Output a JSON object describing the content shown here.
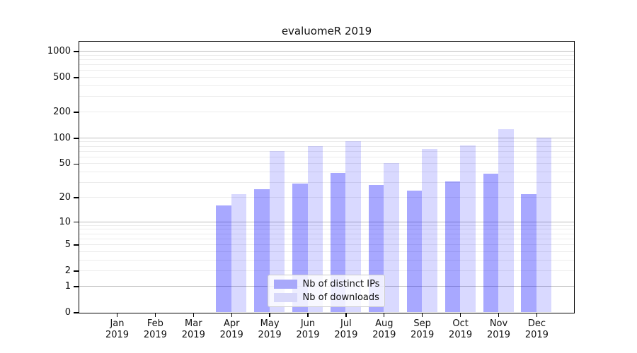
{
  "figure": {
    "title": "evaluomeR 2019",
    "background": "#ffffff"
  },
  "chart_data": {
    "type": "bar",
    "title": "evaluomeR 2019",
    "categories": [
      "Jan",
      "Feb",
      "Mar",
      "Apr",
      "May",
      "Jun",
      "Jul",
      "Aug",
      "Sep",
      "Oct",
      "Nov",
      "Dec"
    ],
    "category_year": "2019",
    "series": [
      {
        "name": "Nb of distinct IPs",
        "legend_color": "#a8a8fa",
        "fill": "rgba(0,0,255,0.34)",
        "values": [
          0,
          0,
          0,
          16,
          25,
          29,
          39,
          28,
          24,
          31,
          38,
          22
        ]
      },
      {
        "name": "Nb of downloads",
        "legend_color": "#d8d8fa",
        "fill": "rgba(0,0,255,0.15)",
        "values": [
          0,
          0,
          0,
          22,
          70,
          81,
          92,
          51,
          74,
          82,
          127,
          100
        ]
      }
    ],
    "yscale": "log10(value+1)",
    "yticks": [
      1000,
      500,
      200,
      100,
      50,
      20,
      10,
      5,
      2,
      1,
      0
    ],
    "ylim": [
      0,
      1280
    ],
    "xlabel": "",
    "ylabel": "",
    "grid": {
      "major_lines": [
        1,
        10,
        100,
        1000
      ],
      "minor_multipliers": [
        2,
        3,
        4,
        5,
        6,
        7,
        8,
        9
      ],
      "minor_decades": [
        1,
        10,
        100
      ],
      "major_color": "#bdbdbd",
      "minor_color": "#ececec"
    },
    "legend_position": "lower center",
    "spine_color": "#000000"
  }
}
